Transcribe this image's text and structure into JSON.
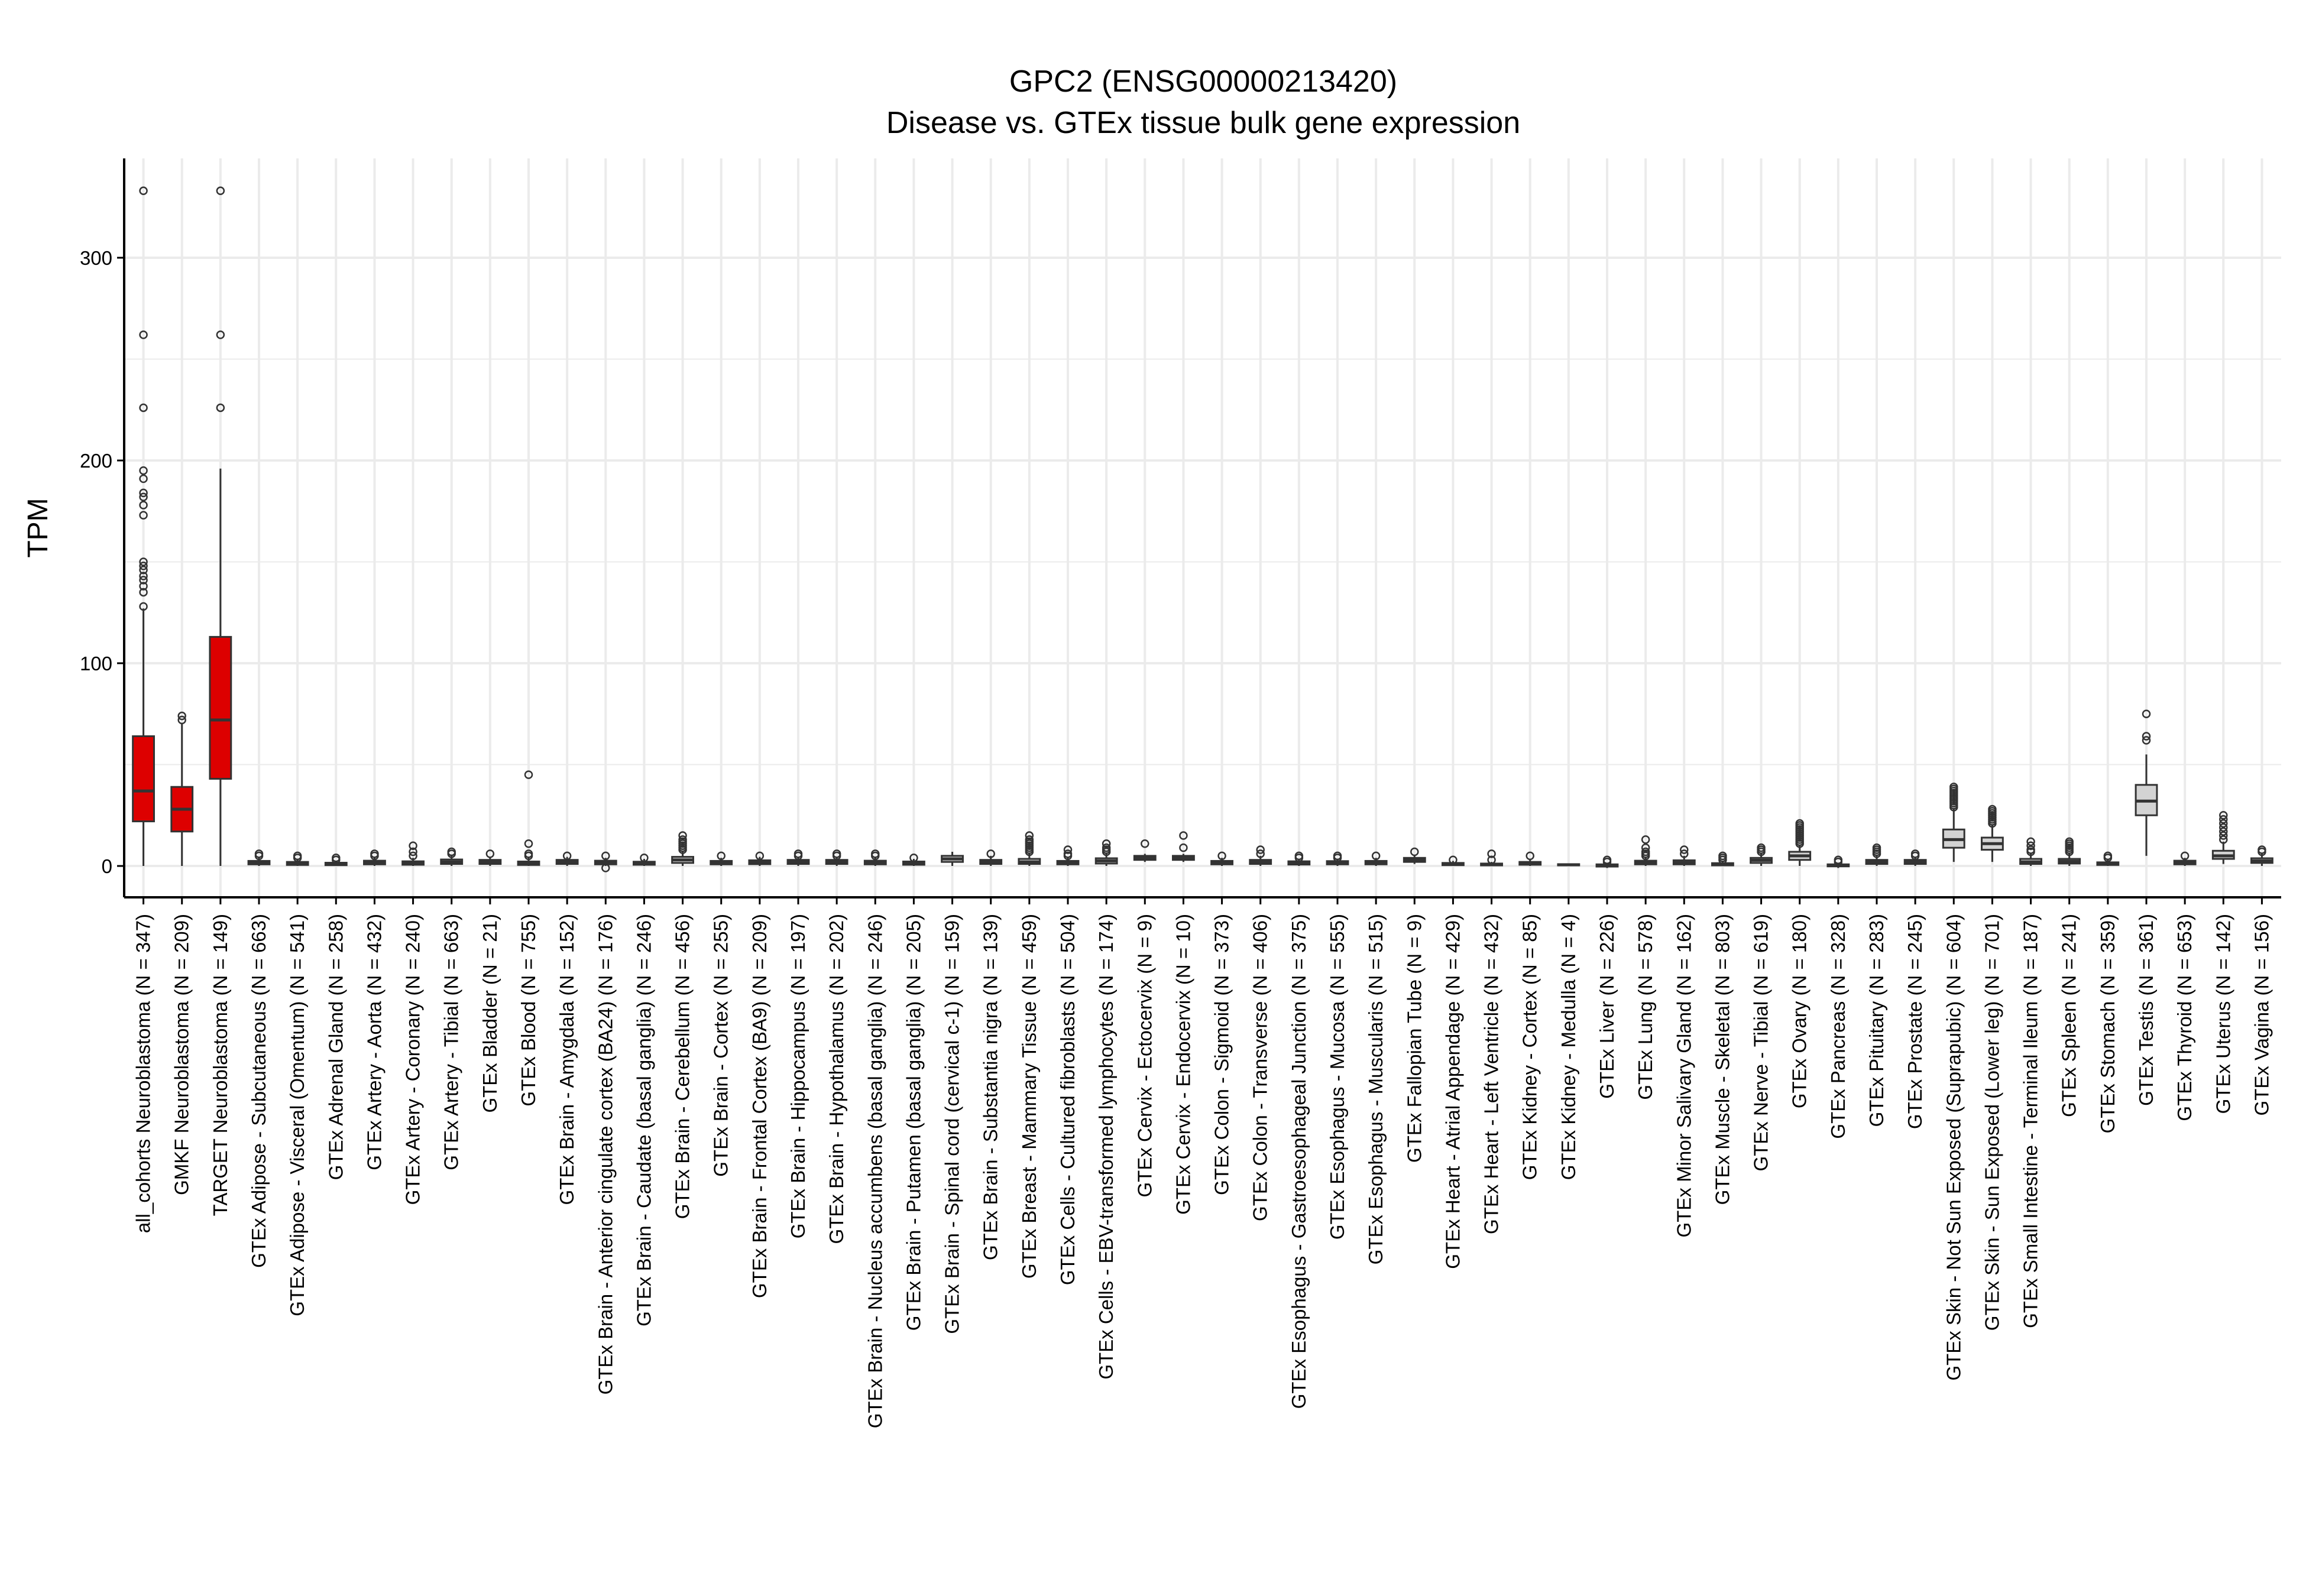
{
  "chart_data": {
    "type": "boxplot",
    "title": "GPC2 (ENSG00000213420)",
    "subtitle": "Disease vs. GTEx tissue bulk gene expression",
    "xlabel": "",
    "ylabel": "TPM",
    "ylim": [
      -15,
      350
    ],
    "yticks": [
      0,
      100,
      200,
      300
    ],
    "grid": true,
    "legend": "none",
    "colors": {
      "disease": "#dd0000",
      "gtex": "#d3d3d3",
      "outline": "#333333",
      "axis": "#000000",
      "grid": "#ebebeb"
    },
    "categories": [
      {
        "label": "all_cohorts Neuroblastoma (N = 347)",
        "group": "disease",
        "min": 0,
        "q1": 22,
        "median": 37,
        "q3": 64,
        "max": 127,
        "outliers": [
          128,
          135,
          138,
          141,
          143,
          146,
          148,
          150,
          173,
          178,
          182,
          184,
          191,
          195,
          226,
          262,
          333
        ]
      },
      {
        "label": "GMKF Neuroblastoma (N = 209)",
        "group": "disease",
        "min": 0,
        "q1": 17,
        "median": 28,
        "q3": 39,
        "max": 70,
        "outliers": [
          72,
          74
        ]
      },
      {
        "label": "TARGET Neuroblastoma (N = 149)",
        "group": "disease",
        "min": 0,
        "q1": 43,
        "median": 72,
        "q3": 113,
        "max": 196,
        "outliers": [
          226,
          262,
          333
        ]
      },
      {
        "label": "GTEx Adipose - Subcutaneous (N = 663)",
        "group": "gtex",
        "min": 0,
        "q1": 0.8,
        "median": 1.5,
        "q3": 2.5,
        "max": 4,
        "outliers": [
          5,
          6
        ]
      },
      {
        "label": "GTEx Adipose - Visceral (Omentum) (N = 541)",
        "group": "gtex",
        "min": 0,
        "q1": 0.5,
        "median": 1.2,
        "q3": 2,
        "max": 3.5,
        "outliers": [
          4,
          5
        ]
      },
      {
        "label": "GTEx Adrenal Gland (N = 258)",
        "group": "gtex",
        "min": 0,
        "q1": 0.4,
        "median": 1,
        "q3": 1.6,
        "max": 2.5,
        "outliers": [
          3,
          4
        ]
      },
      {
        "label": "GTEx Artery - Aorta (N = 432)",
        "group": "gtex",
        "min": 0,
        "q1": 0.8,
        "median": 1.6,
        "q3": 2.6,
        "max": 4,
        "outliers": [
          5,
          6
        ]
      },
      {
        "label": "GTEx Artery - Coronary (N = 240)",
        "group": "gtex",
        "min": 0,
        "q1": 0.6,
        "median": 1.4,
        "q3": 2.3,
        "max": 4,
        "outliers": [
          5,
          7,
          10
        ]
      },
      {
        "label": "GTEx Artery - Tibial (N = 663)",
        "group": "gtex",
        "min": 0,
        "q1": 1,
        "median": 2,
        "q3": 3.2,
        "max": 5,
        "outliers": [
          6,
          7
        ]
      },
      {
        "label": "GTEx Bladder (N = 21)",
        "group": "gtex",
        "min": 0,
        "q1": 1,
        "median": 2,
        "q3": 3,
        "max": 4,
        "outliers": [
          6
        ]
      },
      {
        "label": "GTEx Blood (N = 755)",
        "group": "gtex",
        "min": 0,
        "q1": 0.5,
        "median": 1.2,
        "q3": 2.2,
        "max": 4,
        "outliers": [
          5,
          6,
          11,
          45
        ]
      },
      {
        "label": "GTEx Brain - Amygdala (N = 152)",
        "group": "gtex",
        "min": 0,
        "q1": 1,
        "median": 2,
        "q3": 3,
        "max": 4.5,
        "outliers": [
          5
        ]
      },
      {
        "label": "GTEx Brain - Anterior cingulate cortex (BA24) (N = 176)",
        "group": "gtex",
        "min": 0,
        "q1": 0.8,
        "median": 1.6,
        "q3": 2.6,
        "max": 4,
        "outliers": [
          5,
          -1
        ]
      },
      {
        "label": "GTEx Brain - Caudate (basal ganglia) (N = 246)",
        "group": "gtex",
        "min": 0,
        "q1": 0.6,
        "median": 1.3,
        "q3": 2.1,
        "max": 3.5,
        "outliers": [
          4
        ]
      },
      {
        "label": "GTEx Brain - Cerebellum (N = 456)",
        "group": "gtex",
        "min": 0,
        "q1": 1.5,
        "median": 3,
        "q3": 4.5,
        "max": 7,
        "outliers": [
          8,
          9,
          10,
          11,
          12,
          13,
          15
        ]
      },
      {
        "label": "GTEx Brain - Cortex (N = 255)",
        "group": "gtex",
        "min": 0,
        "q1": 0.8,
        "median": 1.6,
        "q3": 2.5,
        "max": 4,
        "outliers": [
          5
        ]
      },
      {
        "label": "GTEx Brain - Frontal Cortex (BA9) (N = 209)",
        "group": "gtex",
        "min": 0,
        "q1": 0.9,
        "median": 1.8,
        "q3": 2.8,
        "max": 4.5,
        "outliers": [
          5
        ]
      },
      {
        "label": "GTEx Brain - Hippocampus (N = 197)",
        "group": "gtex",
        "min": 0,
        "q1": 1,
        "median": 2,
        "q3": 3,
        "max": 4.5,
        "outliers": [
          5,
          6
        ]
      },
      {
        "label": "GTEx Brain - Hypothalamus (N = 202)",
        "group": "gtex",
        "min": 0,
        "q1": 1,
        "median": 2,
        "q3": 3,
        "max": 4.5,
        "outliers": [
          5,
          6
        ]
      },
      {
        "label": "GTEx Brain - Nucleus accumbens (basal ganglia) (N = 246)",
        "group": "gtex",
        "min": 0,
        "q1": 0.8,
        "median": 1.6,
        "q3": 2.6,
        "max": 4,
        "outliers": [
          5,
          6
        ]
      },
      {
        "label": "GTEx Brain - Putamen (basal ganglia) (N = 205)",
        "group": "gtex",
        "min": 0,
        "q1": 0.6,
        "median": 1.3,
        "q3": 2.2,
        "max": 3.5,
        "outliers": [
          4
        ]
      },
      {
        "label": "GTEx Brain - Spinal cord (cervical c-1) (N = 159)",
        "group": "gtex",
        "min": 0,
        "q1": 2,
        "median": 3.5,
        "q3": 5,
        "max": 7,
        "outliers": []
      },
      {
        "label": "GTEx Brain - Substantia nigra (N = 139)",
        "group": "gtex",
        "min": 0,
        "q1": 1,
        "median": 2,
        "q3": 3,
        "max": 5,
        "outliers": [
          6
        ]
      },
      {
        "label": "GTEx Breast - Mammary Tissue (N = 459)",
        "group": "gtex",
        "min": 0,
        "q1": 1,
        "median": 2,
        "q3": 3.5,
        "max": 6,
        "outliers": [
          7,
          8,
          9,
          10,
          11,
          12,
          13,
          15
        ]
      },
      {
        "label": "GTEx Cells - Cultured fibroblasts (N = 504)",
        "group": "gtex",
        "min": 0,
        "q1": 0.8,
        "median": 1.5,
        "q3": 2.5,
        "max": 4,
        "outliers": [
          5,
          6,
          8
        ]
      },
      {
        "label": "GTEx Cells - EBV-transformed lymphocytes (N = 174)",
        "group": "gtex",
        "min": 0,
        "q1": 1.2,
        "median": 2.5,
        "q3": 3.8,
        "max": 6,
        "outliers": [
          7,
          8,
          9,
          11
        ]
      },
      {
        "label": "GTEx Cervix - Ectocervix (N = 9)",
        "group": "gtex",
        "min": 2,
        "q1": 3,
        "median": 4,
        "q3": 5,
        "max": 6,
        "outliers": [
          11
        ]
      },
      {
        "label": "GTEx Cervix - Endocervix (N = 10)",
        "group": "gtex",
        "min": 2,
        "q1": 3,
        "median": 4,
        "q3": 5,
        "max": 6,
        "outliers": [
          9,
          15
        ]
      },
      {
        "label": "GTEx Colon - Sigmoid (N = 373)",
        "group": "gtex",
        "min": 0,
        "q1": 0.8,
        "median": 1.5,
        "q3": 2.5,
        "max": 4,
        "outliers": [
          5
        ]
      },
      {
        "label": "GTEx Colon - Transverse (N = 406)",
        "group": "gtex",
        "min": 0,
        "q1": 1,
        "median": 2,
        "q3": 3,
        "max": 5,
        "outliers": [
          6,
          8
        ]
      },
      {
        "label": "GTEx Esophagus - Gastroesophageal Junction (N = 375)",
        "group": "gtex",
        "min": 0,
        "q1": 0.7,
        "median": 1.4,
        "q3": 2.3,
        "max": 3.5,
        "outliers": [
          4,
          5
        ]
      },
      {
        "label": "GTEx Esophagus - Mucosa (N = 555)",
        "group": "gtex",
        "min": 0,
        "q1": 0.8,
        "median": 1.5,
        "q3": 2.4,
        "max": 3.5,
        "outliers": [
          4,
          5
        ]
      },
      {
        "label": "GTEx Esophagus - Muscularis (N = 515)",
        "group": "gtex",
        "min": 0,
        "q1": 0.8,
        "median": 1.6,
        "q3": 2.5,
        "max": 4,
        "outliers": [
          5
        ]
      },
      {
        "label": "GTEx Fallopian Tube (N = 9)",
        "group": "gtex",
        "min": 1,
        "q1": 2,
        "median": 3,
        "q3": 4,
        "max": 5,
        "outliers": [
          7
        ]
      },
      {
        "label": "GTEx Heart - Atrial Appendage (N = 429)",
        "group": "gtex",
        "min": 0,
        "q1": 0.4,
        "median": 0.9,
        "q3": 1.5,
        "max": 2.5,
        "outliers": [
          3
        ]
      },
      {
        "label": "GTEx Heart - Left Ventricle (N = 432)",
        "group": "gtex",
        "min": 0,
        "q1": 0.3,
        "median": 0.7,
        "q3": 1.2,
        "max": 2,
        "outliers": [
          3,
          6
        ]
      },
      {
        "label": "GTEx Kidney - Cortex (N = 85)",
        "group": "gtex",
        "min": 0,
        "q1": 0.6,
        "median": 1.2,
        "q3": 2,
        "max": 3,
        "outliers": [
          5
        ]
      },
      {
        "label": "GTEx Kidney - Medulla (N = 4)",
        "group": "gtex",
        "min": 0,
        "q1": 0.3,
        "median": 0.6,
        "q3": 0.9,
        "max": 1.2,
        "outliers": []
      },
      {
        "label": "GTEx Liver (N = 226)",
        "group": "gtex",
        "min": -1,
        "q1": -0.3,
        "median": 0.3,
        "q3": 0.8,
        "max": 1.5,
        "outliers": [
          2,
          3
        ]
      },
      {
        "label": "GTEx Lung (N = 578)",
        "group": "gtex",
        "min": 0,
        "q1": 0.8,
        "median": 1.6,
        "q3": 2.6,
        "max": 4,
        "outliers": [
          5,
          6,
          7,
          9,
          13
        ]
      },
      {
        "label": "GTEx Minor Salivary Gland (N = 162)",
        "group": "gtex",
        "min": 0,
        "q1": 0.8,
        "median": 1.7,
        "q3": 2.8,
        "max": 5,
        "outliers": [
          6,
          8
        ]
      },
      {
        "label": "GTEx Muscle - Skeletal (N = 803)",
        "group": "gtex",
        "min": 0,
        "q1": 0.3,
        "median": 0.8,
        "q3": 1.4,
        "max": 2.5,
        "outliers": [
          3,
          4,
          5
        ]
      },
      {
        "label": "GTEx Nerve - Tibial (N = 619)",
        "group": "gtex",
        "min": 0,
        "q1": 1.5,
        "median": 2.8,
        "q3": 4,
        "max": 6,
        "outliers": [
          7,
          8,
          9
        ]
      },
      {
        "label": "GTEx Ovary (N = 180)",
        "group": "gtex",
        "min": 0,
        "q1": 3,
        "median": 5,
        "q3": 7,
        "max": 10,
        "outliers": [
          11,
          12,
          13,
          14,
          15,
          16,
          17,
          18,
          19,
          20,
          21
        ]
      },
      {
        "label": "GTEx Pancreas (N = 328)",
        "group": "gtex",
        "min": -1,
        "q1": -0.2,
        "median": 0.3,
        "q3": 0.8,
        "max": 1.5,
        "outliers": [
          2,
          3
        ]
      },
      {
        "label": "GTEx Pituitary (N = 283)",
        "group": "gtex",
        "min": 0,
        "q1": 1,
        "median": 2,
        "q3": 3,
        "max": 5,
        "outliers": [
          6,
          7,
          8,
          9
        ]
      },
      {
        "label": "GTEx Prostate (N = 245)",
        "group": "gtex",
        "min": 0,
        "q1": 1,
        "median": 2,
        "q3": 3,
        "max": 4,
        "outliers": [
          5,
          6
        ]
      },
      {
        "label": "GTEx Skin - Not Sun Exposed (Suprapubic) (N = 604)",
        "group": "gtex",
        "min": 2,
        "q1": 9,
        "median": 13,
        "q3": 18,
        "max": 28,
        "outliers": [
          29,
          30,
          31,
          32,
          33,
          34,
          35,
          36,
          37,
          38,
          39
        ]
      },
      {
        "label": "GTEx Skin - Sun Exposed (Lower leg) (N = 701)",
        "group": "gtex",
        "min": 2,
        "q1": 8,
        "median": 11,
        "q3": 14,
        "max": 20,
        "outliers": [
          21,
          22,
          23,
          24,
          25,
          26,
          27,
          28
        ]
      },
      {
        "label": "GTEx Small Intestine - Terminal Ileum (N = 187)",
        "group": "gtex",
        "min": 0,
        "q1": 1,
        "median": 2,
        "q3": 3.5,
        "max": 6,
        "outliers": [
          7,
          8,
          10,
          12
        ]
      },
      {
        "label": "GTEx Spleen (N = 241)",
        "group": "gtex",
        "min": 0,
        "q1": 1.2,
        "median": 2.3,
        "q3": 3.5,
        "max": 6,
        "outliers": [
          7,
          8,
          9,
          10,
          11,
          12
        ]
      },
      {
        "label": "GTEx Stomach (N = 359)",
        "group": "gtex",
        "min": 0,
        "q1": 0.5,
        "median": 1,
        "q3": 1.8,
        "max": 3,
        "outliers": [
          4,
          5
        ]
      },
      {
        "label": "GTEx Testis (N = 361)",
        "group": "gtex",
        "min": 5,
        "q1": 25,
        "median": 32,
        "q3": 40,
        "max": 55,
        "outliers": [
          62,
          64,
          75
        ]
      },
      {
        "label": "GTEx Thyroid (N = 653)",
        "group": "gtex",
        "min": 0,
        "q1": 0.8,
        "median": 1.6,
        "q3": 2.6,
        "max": 4,
        "outliers": [
          5
        ]
      },
      {
        "label": "GTEx Uterus (N = 142)",
        "group": "gtex",
        "min": 1,
        "q1": 3.5,
        "median": 5,
        "q3": 7.5,
        "max": 12,
        "outliers": [
          13,
          15,
          17,
          19,
          21,
          23,
          25
        ]
      },
      {
        "label": "GTEx Vagina (N = 156)",
        "group": "gtex",
        "min": 0,
        "q1": 1.5,
        "median": 2.5,
        "q3": 3.8,
        "max": 6,
        "outliers": [
          7,
          8
        ]
      }
    ]
  }
}
